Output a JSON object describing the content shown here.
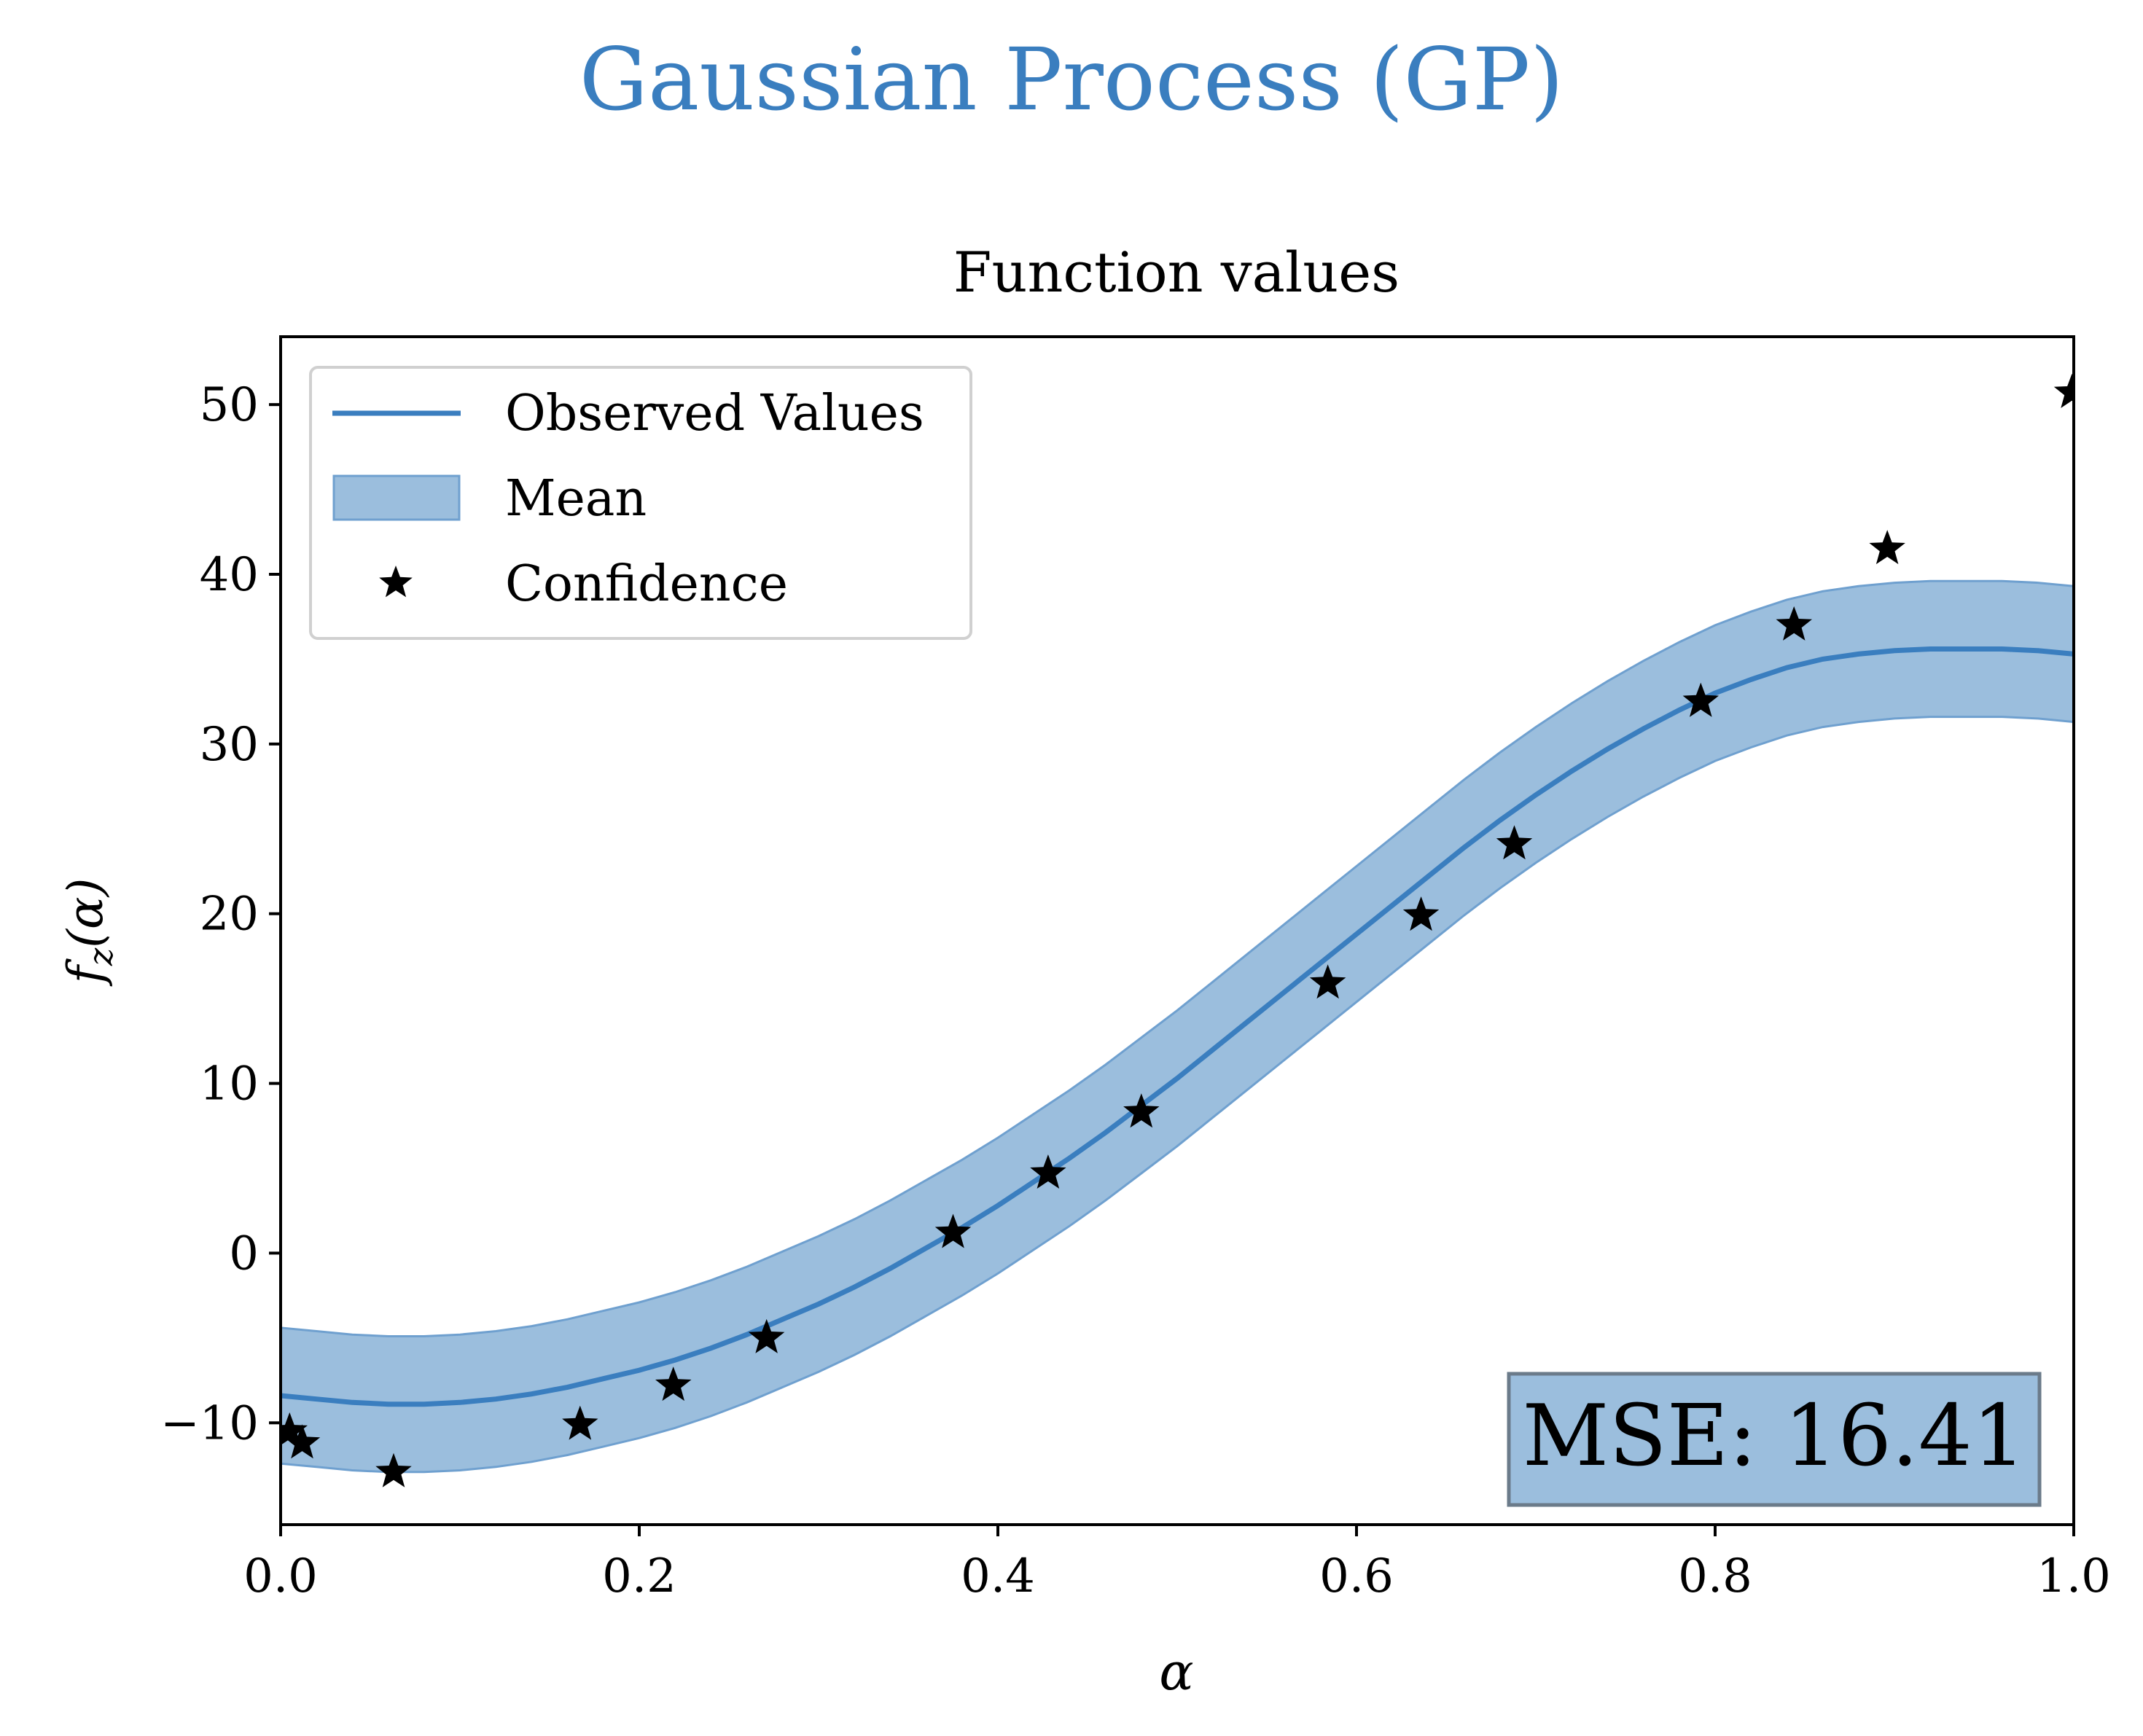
{
  "figure": {
    "suptitle": "Gaussian Process (GP)",
    "suptitle_color": "#3a7ebf"
  },
  "chart_data": {
    "type": "line",
    "title": "Function values",
    "xlabel": "α",
    "ylabel_main": "f",
    "ylabel_sub": "z",
    "ylabel_arg": "(α)",
    "xlim": [
      0.0,
      1.0
    ],
    "ylim": [
      -16,
      54
    ],
    "xticks": [
      0.0,
      0.2,
      0.4,
      0.6,
      0.8,
      1.0
    ],
    "xtick_labels": [
      "0.0",
      "0.2",
      "0.4",
      "0.6",
      "0.8",
      "1.0"
    ],
    "yticks": [
      -10,
      0,
      10,
      20,
      30,
      40,
      50
    ],
    "ytick_labels": [
      "−10",
      "0",
      "10",
      "20",
      "30",
      "40",
      "50"
    ],
    "grid": false,
    "legend_position": "upper-left",
    "legend": [
      {
        "label": "Observed Values",
        "kind": "line"
      },
      {
        "label": "Mean",
        "kind": "band"
      },
      {
        "label": "Confidence",
        "kind": "star"
      }
    ],
    "colors": {
      "line": "#3a7ebf",
      "band_fill": "#9bbedd",
      "band_edge": "#6fa0cf",
      "marker": "#000000",
      "mse_box_fill": "#9bbedd",
      "mse_box_edge": "#6b7b8a"
    },
    "mean_curve": {
      "x": [
        0.0,
        0.02,
        0.04,
        0.06,
        0.08,
        0.1,
        0.12,
        0.14,
        0.16,
        0.18,
        0.2,
        0.22,
        0.24,
        0.26,
        0.28,
        0.3,
        0.32,
        0.34,
        0.36,
        0.38,
        0.4,
        0.42,
        0.44,
        0.46,
        0.48,
        0.5,
        0.52,
        0.54,
        0.56,
        0.58,
        0.6,
        0.62,
        0.64,
        0.66,
        0.68,
        0.7,
        0.72,
        0.74,
        0.76,
        0.78,
        0.8,
        0.82,
        0.84,
        0.86,
        0.88,
        0.9,
        0.92,
        0.94,
        0.96,
        0.98,
        1.0
      ],
      "y": [
        -8.4,
        -8.6,
        -8.8,
        -8.9,
        -8.9,
        -8.8,
        -8.6,
        -8.3,
        -7.9,
        -7.4,
        -6.9,
        -6.3,
        -5.6,
        -4.8,
        -3.9,
        -3.0,
        -2.0,
        -0.9,
        0.3,
        1.5,
        2.8,
        4.2,
        5.6,
        7.1,
        8.7,
        10.3,
        12.0,
        13.7,
        15.4,
        17.1,
        18.8,
        20.5,
        22.2,
        23.9,
        25.5,
        27.0,
        28.4,
        29.7,
        30.9,
        32.0,
        33.0,
        33.8,
        34.5,
        35.0,
        35.3,
        35.5,
        35.6,
        35.6,
        35.6,
        35.5,
        35.3
      ],
      "band_halfwidth": 4.0
    },
    "points": {
      "x": [
        0.005,
        0.012,
        0.063,
        0.167,
        0.219,
        0.271,
        0.375,
        0.428,
        0.48,
        0.584,
        0.636,
        0.688,
        0.792,
        0.844,
        0.896,
        0.999
      ],
      "y": [
        -10.5,
        -11.2,
        -12.9,
        -10.1,
        -7.8,
        -5.0,
        1.2,
        4.7,
        8.3,
        15.9,
        19.9,
        24.1,
        32.5,
        37.0,
        41.5,
        50.7
      ]
    },
    "annotation": "MSE: 16.41"
  }
}
